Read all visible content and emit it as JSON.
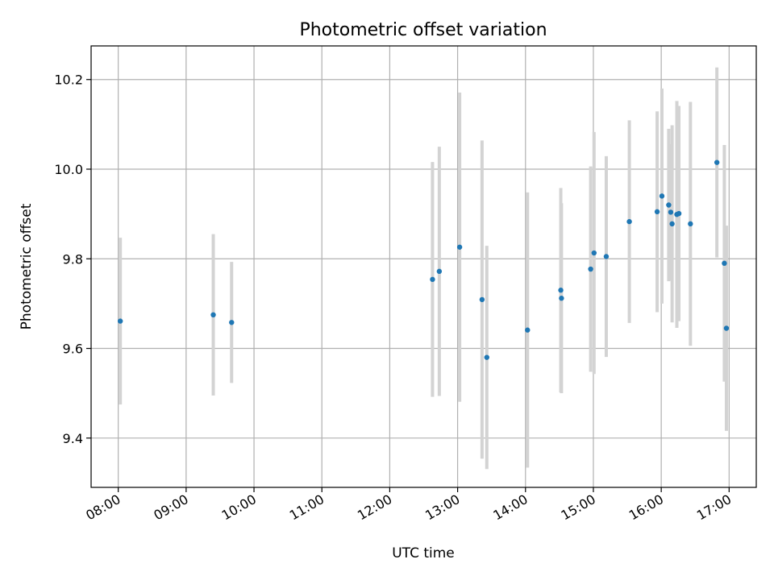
{
  "chart_data": {
    "type": "scatter",
    "title": "Photometric offset variation",
    "xlabel": "UTC time",
    "ylabel": "Photometric offset",
    "xlim": [
      7.6,
      17.4
    ],
    "ylim": [
      9.29,
      10.275
    ],
    "xticks": [
      {
        "value": 8,
        "label": "08:00"
      },
      {
        "value": 9,
        "label": "09:00"
      },
      {
        "value": 10,
        "label": "10:00"
      },
      {
        "value": 11,
        "label": "11:00"
      },
      {
        "value": 12,
        "label": "12:00"
      },
      {
        "value": 13,
        "label": "13:00"
      },
      {
        "value": 14,
        "label": "14:00"
      },
      {
        "value": 15,
        "label": "15:00"
      },
      {
        "value": 16,
        "label": "16:00"
      },
      {
        "value": 17,
        "label": "17:00"
      }
    ],
    "yticks": [
      {
        "value": 9.4,
        "label": "9.4"
      },
      {
        "value": 9.6,
        "label": "9.6"
      },
      {
        "value": 9.8,
        "label": "9.8"
      },
      {
        "value": 10.0,
        "label": "10.0"
      },
      {
        "value": 10.2,
        "label": "10.2"
      }
    ],
    "grid": true,
    "marker_color": "#1f77b4",
    "errorbar_color": "#d3d3d3",
    "points": [
      {
        "x": 8.03,
        "y": 9.661,
        "err": 0.186
      },
      {
        "x": 9.4,
        "y": 9.675,
        "err": 0.18
      },
      {
        "x": 9.67,
        "y": 9.658,
        "err": 0.135
      },
      {
        "x": 12.63,
        "y": 9.754,
        "err": 0.262
      },
      {
        "x": 12.73,
        "y": 9.772,
        "err": 0.278
      },
      {
        "x": 13.03,
        "y": 9.826,
        "err": 0.345
      },
      {
        "x": 13.36,
        "y": 9.709,
        "err": 0.355
      },
      {
        "x": 13.43,
        "y": 9.58,
        "err": 0.249
      },
      {
        "x": 14.03,
        "y": 9.641,
        "err": 0.307
      },
      {
        "x": 14.52,
        "y": 9.73,
        "err": 0.228
      },
      {
        "x": 14.53,
        "y": 9.712,
        "err": 0.212
      },
      {
        "x": 14.96,
        "y": 9.777,
        "err": 0.229
      },
      {
        "x": 15.01,
        "y": 9.813,
        "err": 0.27
      },
      {
        "x": 15.19,
        "y": 9.805,
        "err": 0.224
      },
      {
        "x": 15.53,
        "y": 9.883,
        "err": 0.226
      },
      {
        "x": 15.94,
        "y": 9.905,
        "err": 0.224
      },
      {
        "x": 16.01,
        "y": 9.94,
        "err": 0.24
      },
      {
        "x": 16.11,
        "y": 9.92,
        "err": 0.17
      },
      {
        "x": 16.14,
        "y": 9.904,
        "err": 0.152
      },
      {
        "x": 16.16,
        "y": 9.878,
        "err": 0.22
      },
      {
        "x": 16.23,
        "y": 9.899,
        "err": 0.253
      },
      {
        "x": 16.26,
        "y": 9.901,
        "err": 0.24
      },
      {
        "x": 16.43,
        "y": 9.878,
        "err": 0.272
      },
      {
        "x": 16.82,
        "y": 10.015,
        "err": 0.212
      },
      {
        "x": 16.93,
        "y": 9.79,
        "err": 0.264
      },
      {
        "x": 16.96,
        "y": 9.645,
        "err": 0.229
      }
    ]
  }
}
